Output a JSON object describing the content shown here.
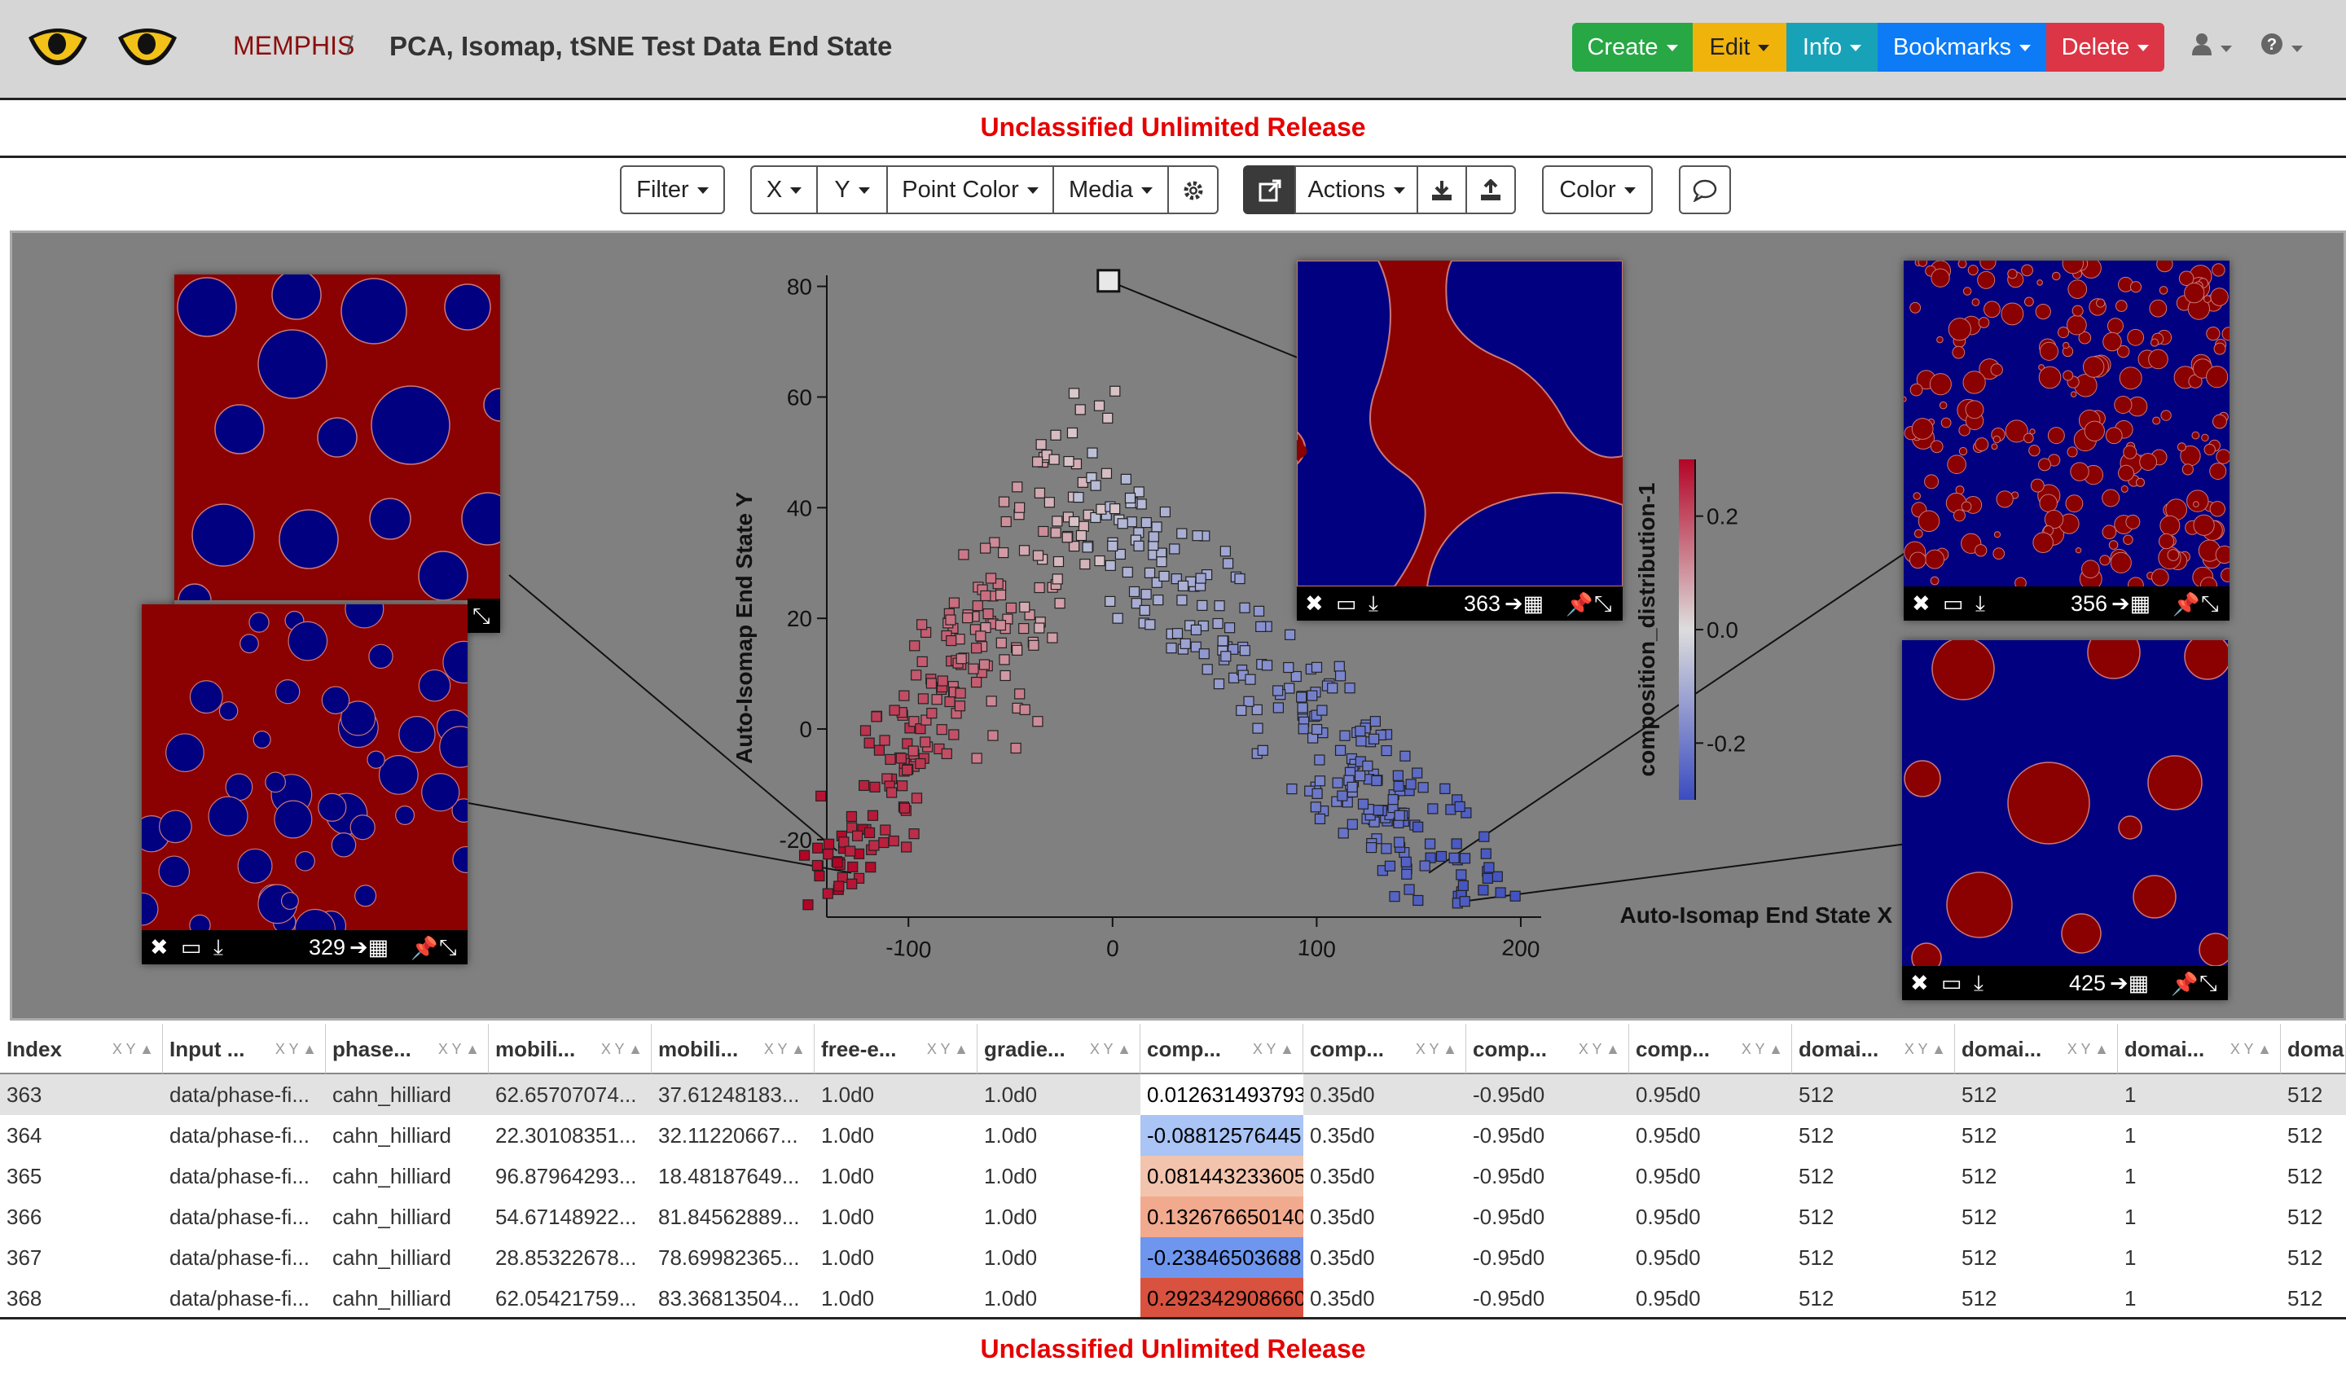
{
  "header": {
    "brand": "MEMPHIS",
    "separator": "/",
    "model_title": "PCA, Isomap, tSNE Test Data End State",
    "buttons": [
      {
        "label": "Create",
        "color": "#28a745"
      },
      {
        "label": "Edit",
        "color": "#f0b30c"
      },
      {
        "label": "Info",
        "color": "#17a2b8"
      },
      {
        "label": "Bookmarks",
        "color": "#0d7bf5"
      },
      {
        "label": "Delete",
        "color": "#dc3545"
      }
    ]
  },
  "banner": {
    "top": "Unclassified Unlimited Release",
    "bottom": "Unclassified Unlimited Release"
  },
  "toolbar": {
    "filter": "Filter",
    "x": "X",
    "y": "Y",
    "point_color": "Point Color",
    "media": "Media",
    "actions": "Actions",
    "color": "Color"
  },
  "chart_data": {
    "type": "scatter",
    "xlabel": "Auto-Isomap End State X",
    "ylabel": "Auto-Isomap End State Y",
    "x_ticks": [
      "-100",
      "0",
      "100",
      "200"
    ],
    "y_ticks": [
      "80",
      "60",
      "40",
      "20",
      "0",
      "-20"
    ],
    "xlim": [
      -140,
      210
    ],
    "ylim": [
      -34,
      82
    ],
    "color_by": "composition_distribution-1",
    "colorbar_ticks": [
      "0.2",
      "0.0",
      "-0.2"
    ],
    "colorbar_range": [
      -0.3,
      0.3
    ],
    "selected_point": {
      "x": -2,
      "y": 81
    },
    "points_note": "approx. 500 points along an inverted-V arc from (-140,-27) up to (-10,63) and down to (180,-32)"
  },
  "media": [
    {
      "id": "329",
      "label": "329",
      "pattern": "red-bg-blue-dots"
    },
    {
      "id": "329b",
      "label": "",
      "pattern": "red-bg-blue-large"
    },
    {
      "id": "363",
      "label": "363",
      "pattern": "labyrinth"
    },
    {
      "id": "356",
      "label": "356",
      "pattern": "blue-bg-red-small"
    },
    {
      "id": "425",
      "label": "425",
      "pattern": "blue-bg-red-large"
    }
  ],
  "table": {
    "columns": [
      "Index",
      "Input ...",
      "phase...",
      "mobili...",
      "mobili...",
      "free-e...",
      "gradie...",
      "comp...",
      "comp...",
      "comp...",
      "comp...",
      "domai...",
      "domai...",
      "domai...",
      "doma"
    ],
    "rows": [
      [
        "363",
        "data/phase-fi...",
        "cahn_hilliard",
        "62.65707074...",
        "37.61248183...",
        "1.0d0",
        "1.0d0",
        "0.012631493793",
        "0.35d0",
        "-0.95d0",
        "0.95d0",
        "512",
        "512",
        "1",
        "512"
      ],
      [
        "364",
        "data/phase-fi...",
        "cahn_hilliard",
        "22.30108351...",
        "32.11220667...",
        "1.0d0",
        "1.0d0",
        "-0.08812576445",
        "0.35d0",
        "-0.95d0",
        "0.95d0",
        "512",
        "512",
        "1",
        "512"
      ],
      [
        "365",
        "data/phase-fi...",
        "cahn_hilliard",
        "96.87964293...",
        "18.48187649...",
        "1.0d0",
        "1.0d0",
        "0.081443233605",
        "0.35d0",
        "-0.95d0",
        "0.95d0",
        "512",
        "512",
        "1",
        "512"
      ],
      [
        "366",
        "data/phase-fi...",
        "cahn_hilliard",
        "54.67148922...",
        "81.84562889...",
        "1.0d0",
        "1.0d0",
        "0.132676650140",
        "0.35d0",
        "-0.95d0",
        "0.95d0",
        "512",
        "512",
        "1",
        "512"
      ],
      [
        "367",
        "data/phase-fi...",
        "cahn_hilliard",
        "28.85322678...",
        "78.69982365...",
        "1.0d0",
        "1.0d0",
        "-0.23846503688",
        "0.35d0",
        "-0.95d0",
        "0.95d0",
        "512",
        "512",
        "1",
        "512"
      ],
      [
        "368",
        "data/phase-fi...",
        "cahn_hilliard",
        "62.05421759...",
        "83.36813504...",
        "1.0d0",
        "1.0d0",
        "0.292342908660",
        "0.35d0",
        "-0.95d0",
        "0.95d0",
        "512",
        "512",
        "1",
        "512"
      ]
    ],
    "comp_colors": [
      "#ffffff",
      "#a9c4f5",
      "#f3c4ad",
      "#f2aa8f",
      "#6f96ee",
      "#d9523f"
    ]
  }
}
